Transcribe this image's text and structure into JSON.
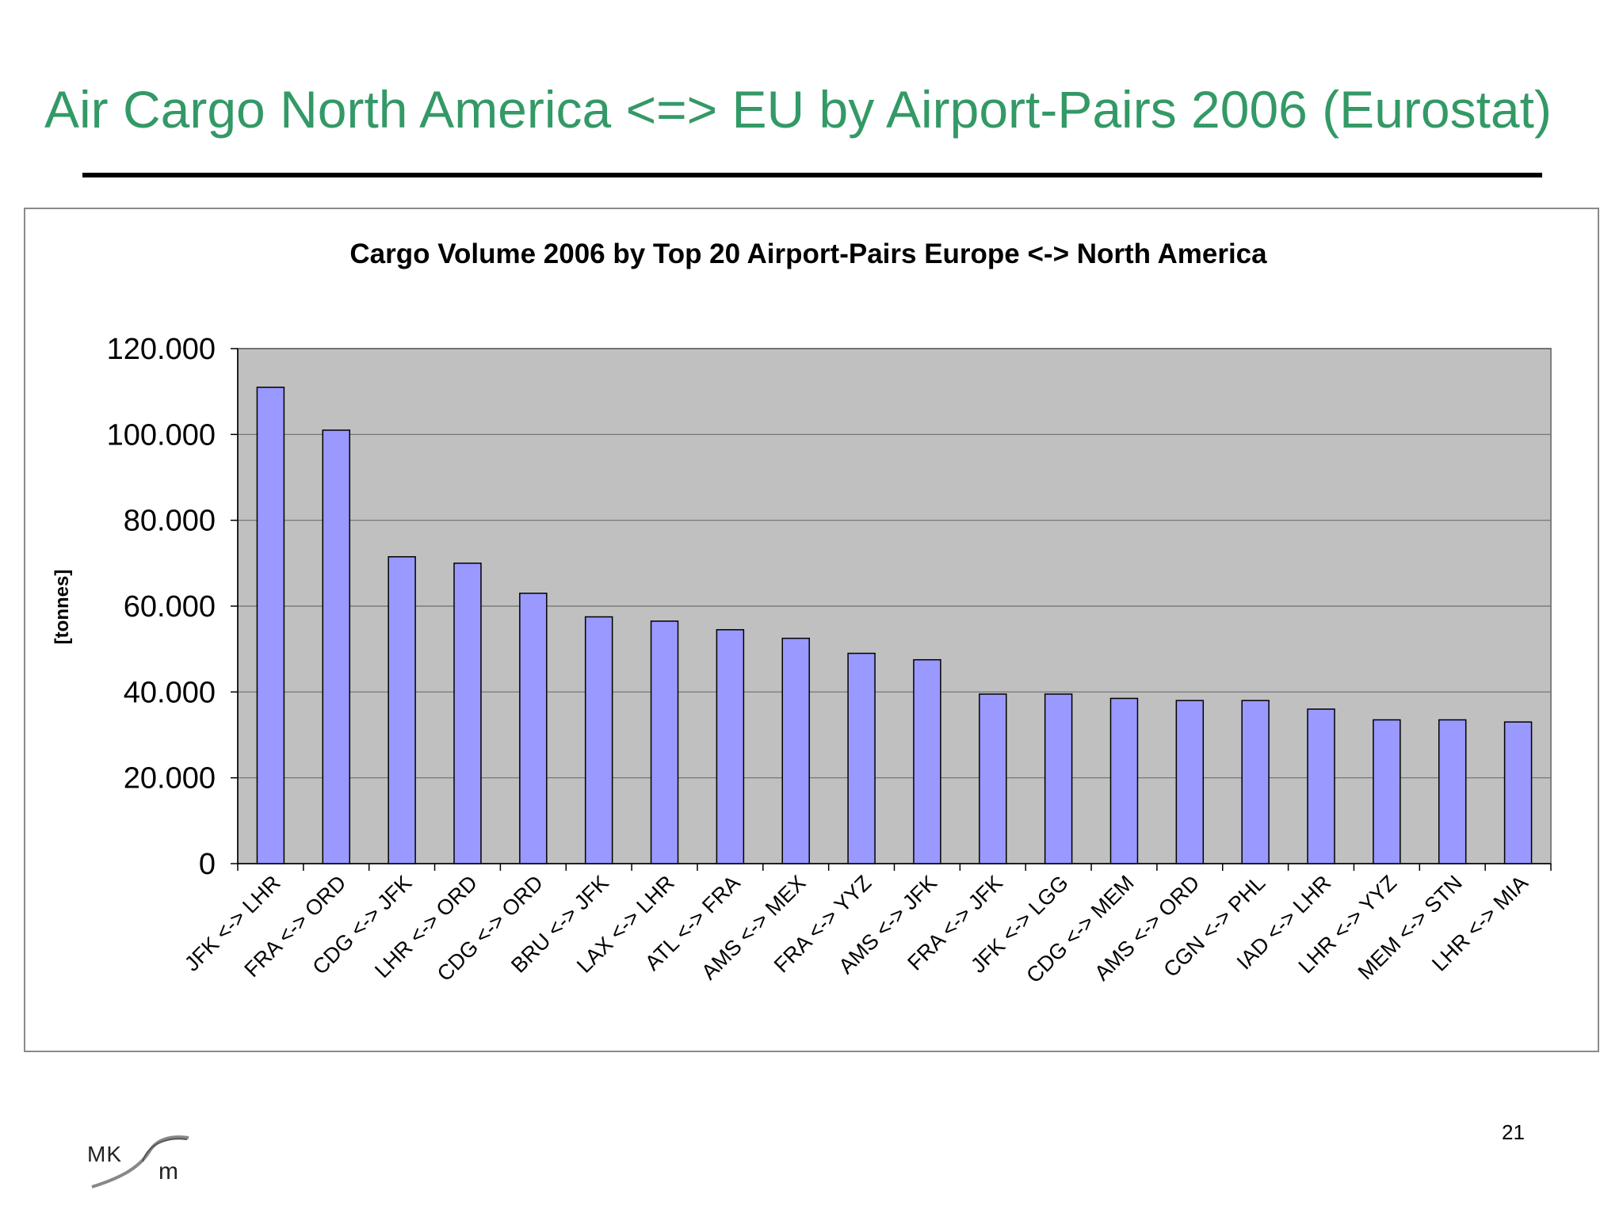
{
  "slide": {
    "title": "Air Cargo North America <=> EU by Airport-Pairs 2006 (Eurostat)",
    "page_number": "21",
    "logo_text": "MKm",
    "title_color": "#339966"
  },
  "chart_data": {
    "type": "bar",
    "title": "Cargo Volume 2006 by Top 20 Airport-Pairs Europe <-> North America",
    "xlabel": "",
    "ylabel": "[tonnes]",
    "ylim": [
      0,
      120000
    ],
    "yticks": [
      0,
      20000,
      40000,
      60000,
      80000,
      100000,
      120000
    ],
    "ytick_labels": [
      "0",
      "20.000",
      "40.000",
      "60.000",
      "80.000",
      "100.000",
      "120.000"
    ],
    "grid": true,
    "legend": "none",
    "bar_color": "#9999ff",
    "plot_background": "#c0c0c0",
    "categories": [
      "JFK <-> LHR",
      "FRA <-> ORD",
      "CDG <-> JFK",
      "LHR <-> ORD",
      "CDG <-> ORD",
      "BRU <-> JFK",
      "LAX <-> LHR",
      "ATL <-> FRA",
      "AMS <-> MEX",
      "FRA <-> YYZ",
      "AMS <-> JFK",
      "FRA <-> JFK",
      "JFK <-> LGG",
      "CDG <-> MEM",
      "AMS <-> ORD",
      "CGN <-> PHL",
      "IAD <-> LHR",
      "LHR <-> YYZ",
      "MEM <-> STN",
      "LHR <-> MIA"
    ],
    "values": [
      111000,
      101000,
      71500,
      70000,
      63000,
      57500,
      56500,
      54500,
      52500,
      49000,
      47500,
      39500,
      39500,
      38500,
      38000,
      38000,
      36000,
      33500,
      33500,
      33000
    ]
  }
}
